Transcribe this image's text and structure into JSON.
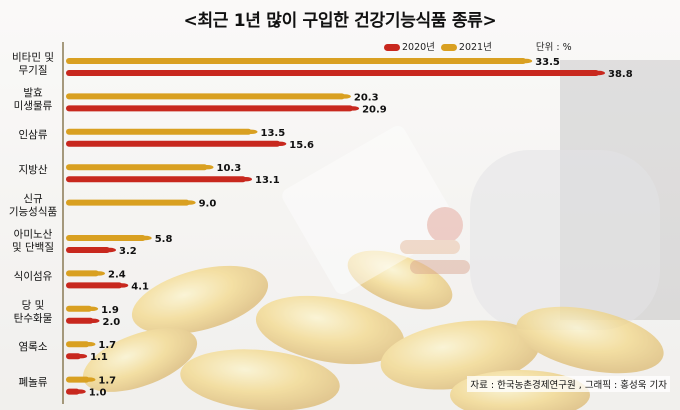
{
  "title": "<최근 1년 많이 구입한 건강기능식품 종류>",
  "legend": {
    "series2020": "2020년",
    "series2021": "2021년",
    "unit": "단위 : %"
  },
  "source": "자료 : 한국농촌경제연구원 , 그래픽 : 홍성욱 기자",
  "colors": {
    "y2020": "#c8281e",
    "y2021": "#d9a021",
    "axis": "#8a7a55"
  },
  "chart_data": {
    "type": "bar",
    "orientation": "horizontal",
    "categories": [
      [
        "비타민 및",
        "무기질"
      ],
      [
        "발효",
        "미생물류"
      ],
      [
        "인삼류"
      ],
      [
        "지방산"
      ],
      [
        "신규",
        "기능성식품"
      ],
      [
        "아미노산",
        "및 단백질"
      ],
      [
        "식이섬유"
      ],
      [
        "당 및",
        "탄수화물"
      ],
      [
        "염록소"
      ],
      [
        "폐놀류"
      ]
    ],
    "series": [
      {
        "name": "2021년",
        "values": [
          33.5,
          20.3,
          13.5,
          10.3,
          9.0,
          5.8,
          2.4,
          1.9,
          1.7,
          1.7
        ]
      },
      {
        "name": "2020년",
        "values": [
          38.8,
          20.9,
          15.6,
          13.1,
          null,
          3.2,
          4.1,
          2.0,
          1.1,
          1.0
        ]
      }
    ],
    "value_labels": {
      "2021년": [
        "33.5",
        "20.3",
        "13.5",
        "10.3",
        "9.0",
        "5.8",
        "2.4",
        "1.9",
        "1.7",
        "1.7"
      ],
      "2020년": [
        "38.8",
        "20.9",
        "15.6",
        "13.1",
        "",
        "3.2",
        "4.1",
        "2.0",
        "1.1",
        "1.0"
      ]
    },
    "xlim": [
      0,
      38.8
    ],
    "grid": false,
    "legend_position": "top-right"
  }
}
